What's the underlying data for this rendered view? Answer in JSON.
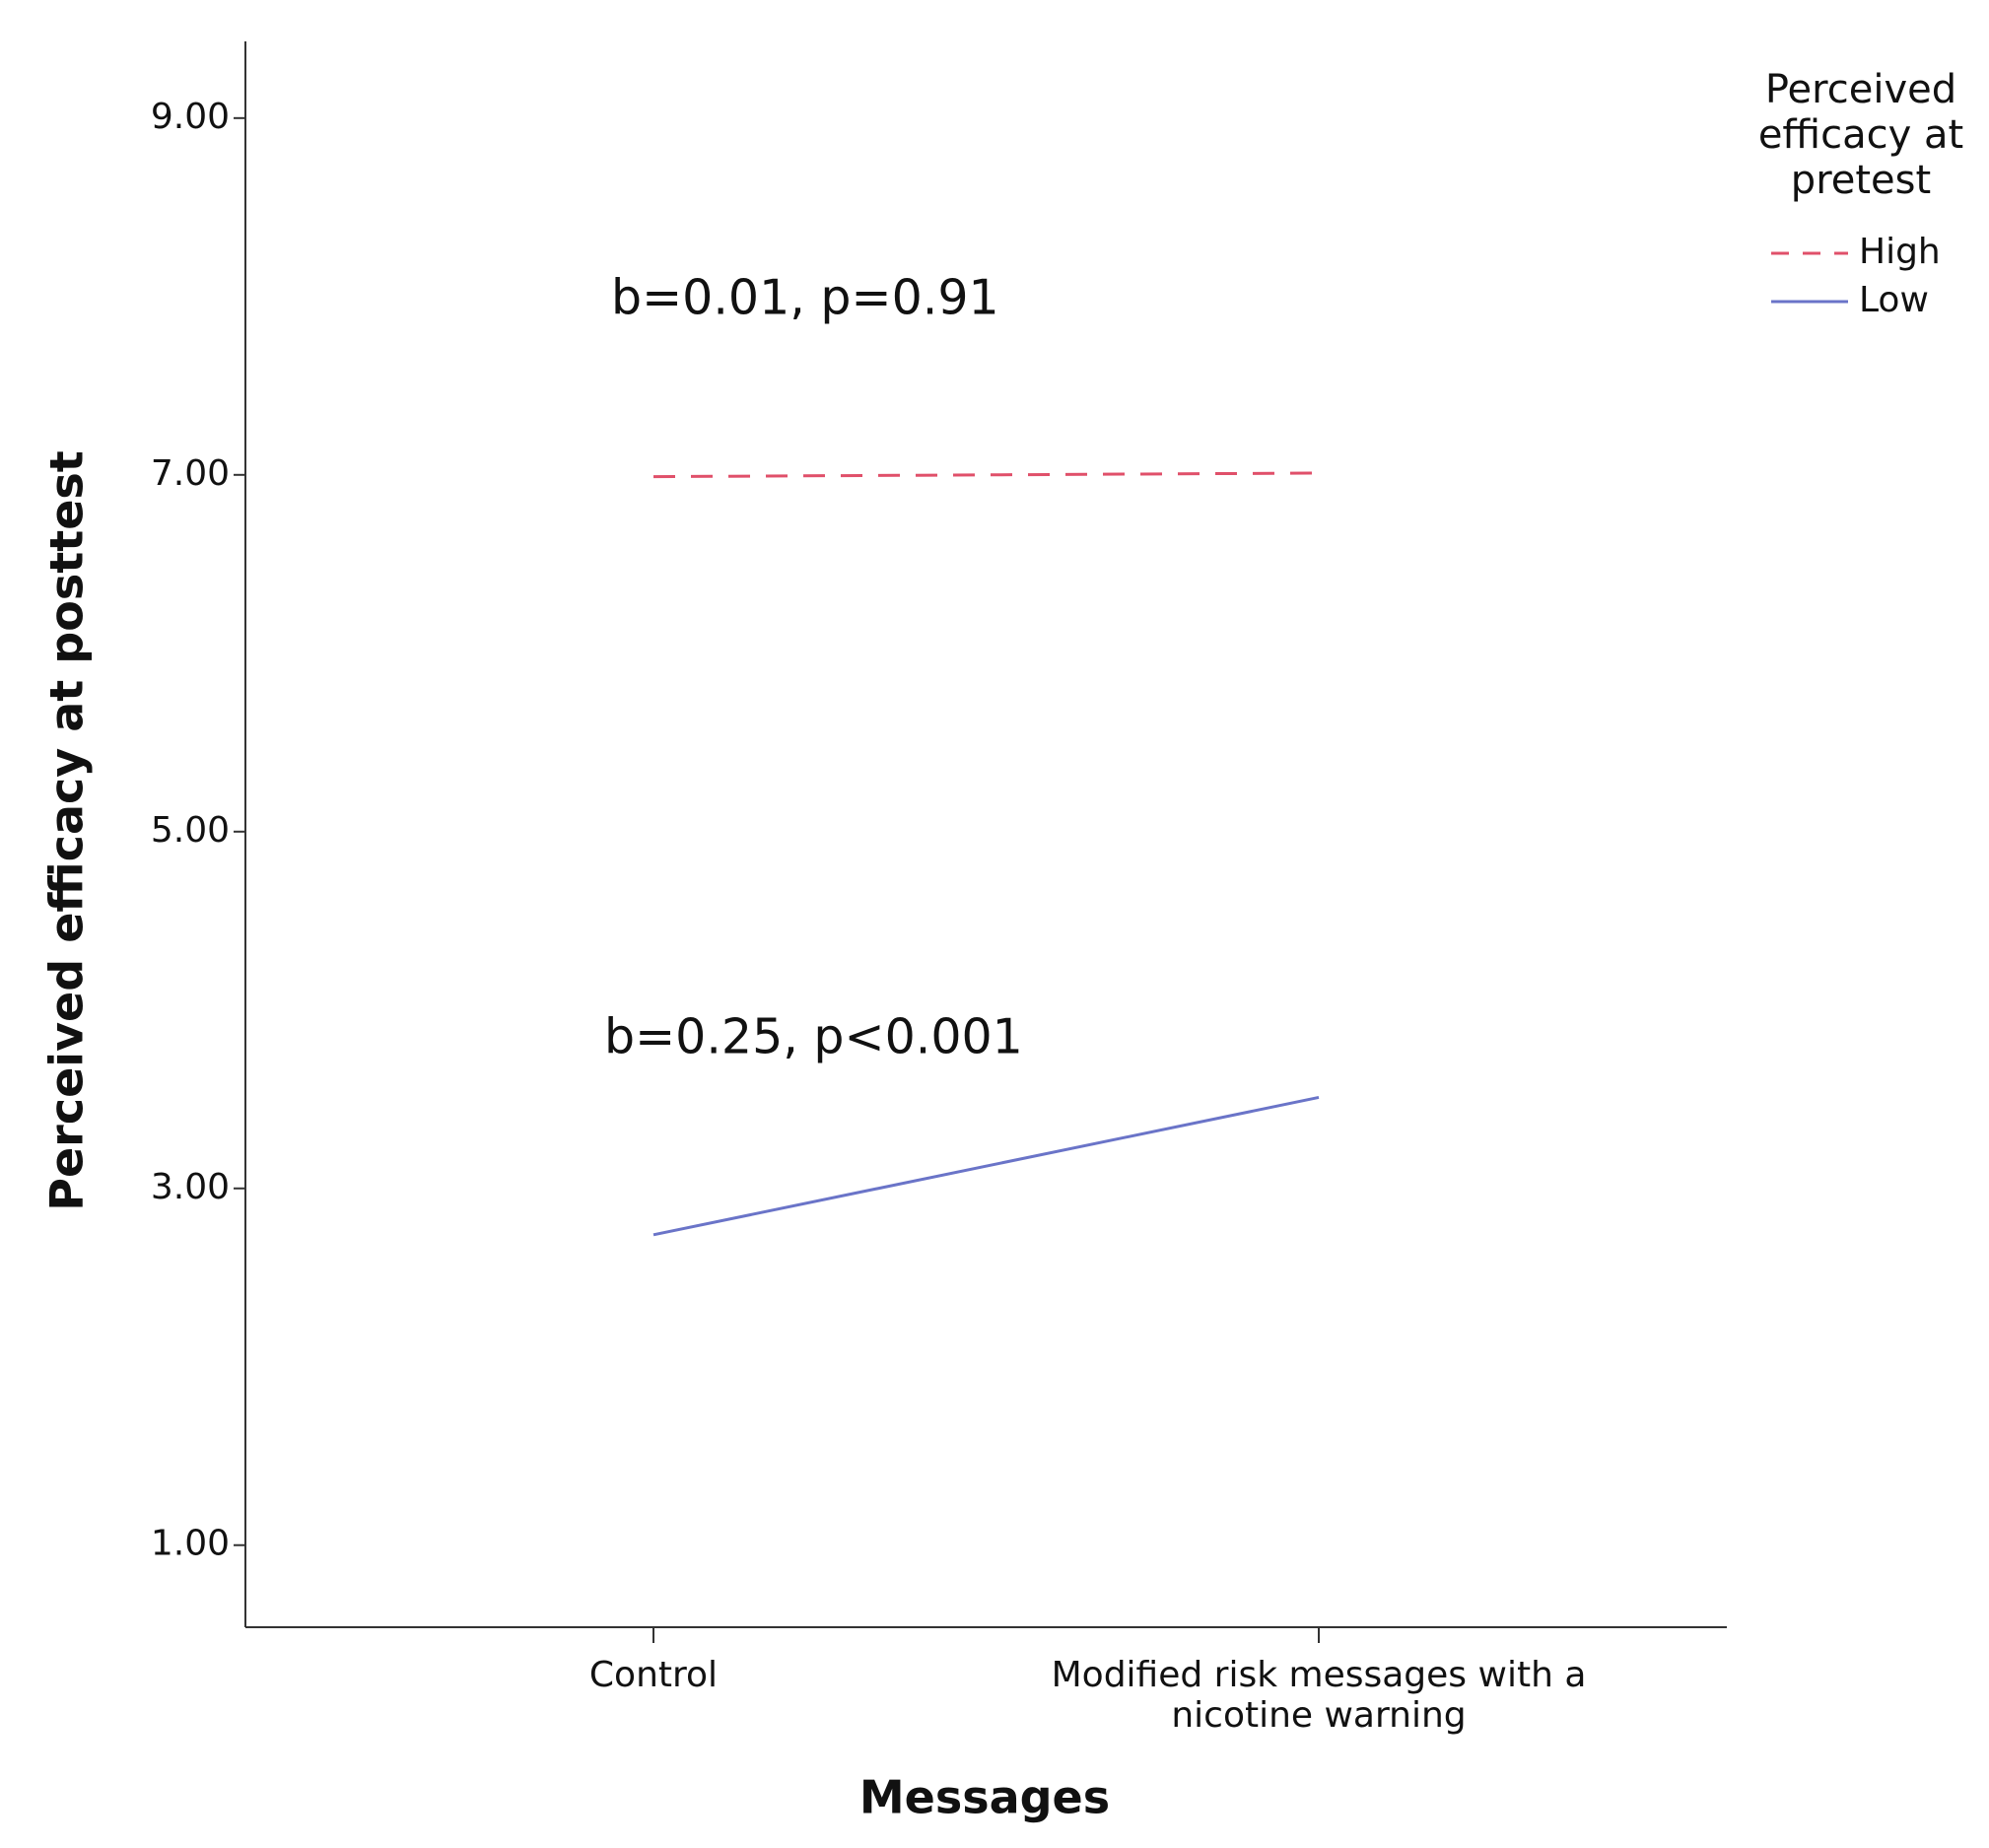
{
  "chart_data": {
    "type": "line",
    "x_label": "Messages",
    "y_label": "Perceived efficacy at posttest",
    "categories": [
      "Control",
      "Modified risk messages with a nicotine warning"
    ],
    "series": [
      {
        "name": "High",
        "color": "#e0506a",
        "line_style": "dashed",
        "values": [
          6.99,
          7.01
        ]
      },
      {
        "name": "Low",
        "color": "#6a74c8",
        "line_style": "solid",
        "values": [
          2.74,
          3.51
        ]
      }
    ],
    "ylim": [
      0.54,
      9.43
    ],
    "yticks": [
      {
        "value": 1,
        "label": "1.00"
      },
      {
        "value": 3,
        "label": "3.00"
      },
      {
        "value": 5,
        "label": "5.00"
      },
      {
        "value": 7,
        "label": "7.00"
      },
      {
        "value": 9,
        "label": "9.00"
      }
    ],
    "legend_title": "Perceived efficacy at pretest",
    "legend": "right",
    "annotations": [
      "b=0.01, p=0.91",
      "b=0.25, p<0.001"
    ]
  }
}
